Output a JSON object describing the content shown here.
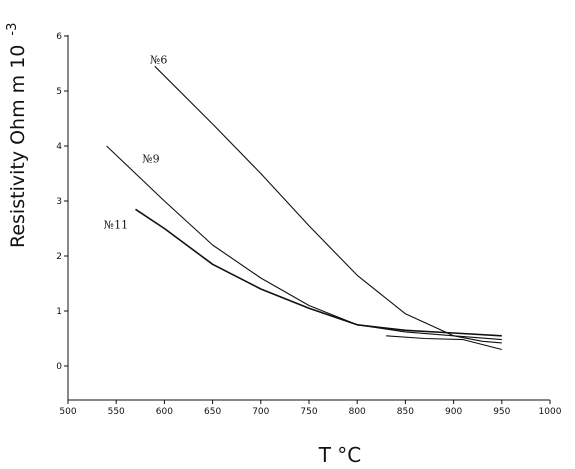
{
  "chart_data": {
    "type": "line",
    "title": "",
    "xlabel": "T °C",
    "ylabel": "Resistivity Ohm m 10",
    "ylabel_exponent": "-3",
    "xlim": [
      500,
      1000
    ],
    "ylim": [
      -0.5,
      6
    ],
    "x_ticks": [
      500,
      550,
      600,
      650,
      700,
      750,
      800,
      850,
      900,
      950,
      1000
    ],
    "x_tick_labels": [
      "500",
      "550",
      "600",
      "650",
      "700",
      "750",
      "800",
      "850",
      "900",
      "950",
      "1000"
    ],
    "y_ticks": [
      0,
      1,
      2,
      3,
      4,
      5,
      6
    ],
    "y_tick_labels": [
      "0",
      "1",
      "2",
      "3",
      "4",
      "5",
      "6"
    ],
    "grid": false,
    "legend": "none",
    "series": [
      {
        "name": "№6",
        "label_at": [
          585,
          5.5
        ],
        "points": [
          [
            590,
            5.45
          ],
          [
            650,
            4.4
          ],
          [
            700,
            3.5
          ],
          [
            750,
            2.55
          ],
          [
            800,
            1.65
          ],
          [
            850,
            0.95
          ],
          [
            900,
            0.55
          ],
          [
            930,
            0.45
          ],
          [
            950,
            0.42
          ]
        ]
      },
      {
        "name": "№9",
        "label_at": [
          577,
          3.7
        ],
        "points": [
          [
            540,
            4.0
          ],
          [
            570,
            3.5
          ],
          [
            600,
            3.0
          ],
          [
            650,
            2.2
          ],
          [
            700,
            1.6
          ],
          [
            750,
            1.1
          ],
          [
            800,
            0.75
          ],
          [
            850,
            0.62
          ],
          [
            900,
            0.55
          ],
          [
            950,
            0.48
          ]
        ]
      },
      {
        "name": "№11",
        "label_at": [
          537,
          2.5
        ],
        "points": [
          [
            570,
            2.85
          ],
          [
            600,
            2.5
          ],
          [
            650,
            1.85
          ],
          [
            700,
            1.4
          ],
          [
            750,
            1.05
          ],
          [
            800,
            0.75
          ],
          [
            850,
            0.65
          ],
          [
            900,
            0.6
          ],
          [
            950,
            0.55
          ]
        ]
      },
      {
        "name": "",
        "points": [
          [
            830,
            0.55
          ],
          [
            870,
            0.5
          ],
          [
            910,
            0.48
          ],
          [
            950,
            0.3
          ]
        ]
      }
    ]
  }
}
